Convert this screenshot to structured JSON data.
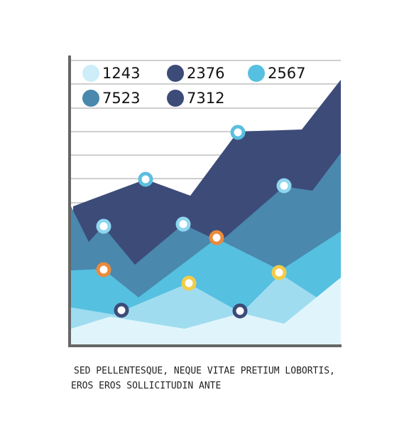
{
  "legend": {
    "items": [
      {
        "label": "1243",
        "color": "#cdeef8"
      },
      {
        "label": "2376",
        "color": "#3d4b78"
      },
      {
        "label": "2567",
        "color": "#56c0e0"
      },
      {
        "label": "7523",
        "color": "#4a88ad"
      },
      {
        "label": "7312",
        "color": "#3d4b78"
      }
    ]
  },
  "caption": {
    "lines": [
      "SED PELLENTESQUE, NEQUE VITAE PRETIUM LOBORTIS,",
      "EROS EROS SOLLICITUDIN ANTE"
    ]
  }
}
